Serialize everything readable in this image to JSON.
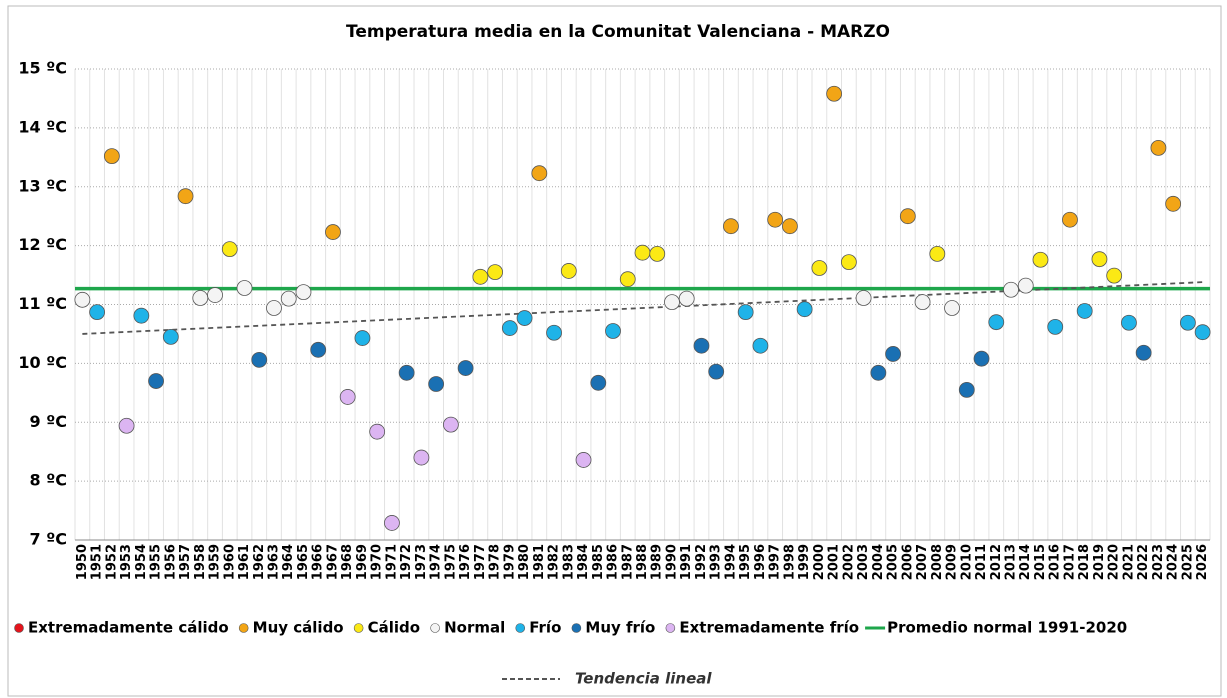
{
  "chart_data": {
    "type": "scatter",
    "title": "Temperatura media en la Comunitat Valenciana - MARZO",
    "categories": [
      "1950",
      "1951",
      "1952",
      "1953",
      "1954",
      "1955",
      "1956",
      "1957",
      "1958",
      "1959",
      "1960",
      "1961",
      "1962",
      "1963",
      "1964",
      "1965",
      "1966",
      "1967",
      "1968",
      "1969",
      "1970",
      "1971",
      "1972",
      "1973",
      "1974",
      "1975",
      "1976",
      "1977",
      "1978",
      "1979",
      "1980",
      "1981",
      "1982",
      "1983",
      "1984",
      "1985",
      "1986",
      "1987",
      "1988",
      "1989",
      "1990",
      "1991",
      "1992",
      "1993",
      "1994",
      "1995",
      "1996",
      "1997",
      "1998",
      "1999",
      "2000",
      "2001",
      "2002",
      "2003",
      "2004",
      "2005",
      "2006",
      "2007",
      "2008",
      "2009",
      "2010",
      "2011",
      "2012",
      "2013",
      "2014",
      "2015",
      "2016",
      "2017",
      "2018",
      "2019",
      "2020",
      "2021",
      "2022",
      "2023",
      "2024",
      "2025",
      "2026"
    ],
    "ylim": [
      7,
      15
    ],
    "yticks": [
      {
        "value": 7,
        "label": "7 ºC"
      },
      {
        "value": 8,
        "label": "8 ºC"
      },
      {
        "value": 9,
        "label": "9 ºC"
      },
      {
        "value": 10,
        "label": "10 ºC"
      },
      {
        "value": 11,
        "label": "11 ºC"
      },
      {
        "value": 12,
        "label": "12 ºC"
      },
      {
        "value": 13,
        "label": "13 ºC"
      },
      {
        "value": 14,
        "label": "14 ºC"
      },
      {
        "value": 15,
        "label": "15 ºC"
      }
    ],
    "grid": true,
    "legend": "bottom",
    "series": [
      {
        "name": "Extremadamente cálido",
        "color": "#e3141c",
        "values": [
          null,
          null,
          null,
          null,
          null,
          null,
          null,
          null,
          null,
          null,
          null,
          null,
          null,
          null,
          null,
          null,
          null,
          null,
          null,
          null,
          null,
          null,
          null,
          null,
          null,
          null,
          null,
          null,
          null,
          null,
          null,
          null,
          null,
          null,
          null,
          null,
          null,
          null,
          null,
          null,
          null,
          null,
          null,
          null,
          null,
          null,
          null,
          null,
          null,
          null,
          null,
          null,
          null,
          null,
          null,
          null,
          null,
          null,
          null,
          null,
          null,
          null,
          null,
          null,
          null,
          null,
          null,
          null,
          null,
          null,
          null,
          null,
          null,
          null,
          null,
          null,
          null
        ]
      },
      {
        "name": "Muy cálido",
        "color": "#f2a516",
        "values": [
          null,
          null,
          13.52,
          null,
          null,
          null,
          null,
          12.84,
          null,
          null,
          null,
          null,
          null,
          null,
          null,
          null,
          null,
          12.23,
          null,
          null,
          null,
          null,
          null,
          null,
          null,
          null,
          null,
          null,
          null,
          null,
          null,
          13.23,
          null,
          null,
          null,
          null,
          null,
          null,
          null,
          null,
          null,
          null,
          null,
          null,
          12.33,
          null,
          null,
          12.44,
          12.33,
          null,
          null,
          14.58,
          null,
          null,
          null,
          null,
          12.5,
          null,
          null,
          null,
          null,
          null,
          null,
          null,
          null,
          null,
          null,
          12.44,
          null,
          null,
          null,
          null,
          null,
          13.66,
          12.71,
          null,
          null
        ]
      },
      {
        "name": "Cálido",
        "color": "#fbe915",
        "values": [
          null,
          null,
          null,
          null,
          null,
          null,
          null,
          null,
          null,
          null,
          11.94,
          null,
          null,
          null,
          null,
          null,
          null,
          null,
          null,
          null,
          null,
          null,
          null,
          null,
          null,
          null,
          null,
          11.47,
          11.55,
          null,
          null,
          null,
          null,
          11.57,
          null,
          null,
          null,
          11.43,
          11.88,
          11.86,
          null,
          null,
          null,
          null,
          null,
          null,
          null,
          null,
          null,
          null,
          11.62,
          null,
          11.72,
          null,
          null,
          null,
          null,
          null,
          11.86,
          null,
          null,
          null,
          null,
          null,
          null,
          11.76,
          null,
          null,
          null,
          11.77,
          11.49,
          null,
          null,
          null,
          null,
          null,
          null
        ]
      },
      {
        "name": "Normal",
        "color": "#f4f4f4",
        "values": [
          11.08,
          null,
          null,
          null,
          null,
          null,
          null,
          null,
          11.11,
          11.16,
          null,
          11.28,
          null,
          10.94,
          11.1,
          11.21,
          null,
          null,
          null,
          null,
          null,
          null,
          null,
          null,
          null,
          null,
          null,
          null,
          null,
          null,
          null,
          null,
          null,
          null,
          null,
          null,
          null,
          null,
          null,
          null,
          11.04,
          11.1,
          null,
          null,
          null,
          null,
          null,
          null,
          null,
          null,
          null,
          null,
          null,
          11.11,
          null,
          null,
          null,
          11.04,
          null,
          10.94,
          null,
          null,
          null,
          11.25,
          11.32,
          null,
          null,
          null,
          null,
          null,
          null,
          null,
          null,
          null,
          null,
          null,
          null
        ]
      },
      {
        "name": "Frío",
        "color": "#1fb3e8",
        "values": [
          null,
          10.87,
          null,
          null,
          10.81,
          null,
          10.45,
          null,
          null,
          null,
          null,
          null,
          null,
          null,
          null,
          null,
          null,
          null,
          null,
          10.43,
          null,
          null,
          null,
          null,
          null,
          null,
          null,
          null,
          null,
          10.6,
          10.77,
          null,
          10.52,
          null,
          null,
          null,
          10.55,
          null,
          null,
          null,
          null,
          null,
          null,
          null,
          null,
          10.87,
          10.3,
          null,
          null,
          10.92,
          null,
          null,
          null,
          null,
          null,
          null,
          null,
          null,
          null,
          null,
          null,
          null,
          10.7,
          null,
          null,
          null,
          10.62,
          null,
          10.89,
          null,
          null,
          10.69,
          null,
          null,
          null,
          10.69,
          10.53
        ]
      },
      {
        "name": "Muy frío",
        "color": "#1a70b3",
        "values": [
          null,
          null,
          null,
          null,
          null,
          9.7,
          null,
          null,
          null,
          null,
          null,
          null,
          10.06,
          null,
          null,
          null,
          10.23,
          null,
          null,
          null,
          null,
          null,
          9.84,
          null,
          9.65,
          null,
          9.92,
          null,
          null,
          null,
          null,
          null,
          null,
          null,
          null,
          9.67,
          null,
          null,
          null,
          null,
          null,
          null,
          10.3,
          9.86,
          null,
          null,
          null,
          null,
          null,
          null,
          null,
          null,
          null,
          null,
          9.84,
          10.16,
          null,
          null,
          null,
          null,
          9.55,
          10.08,
          null,
          null,
          null,
          null,
          null,
          null,
          null,
          null,
          null,
          null,
          10.18,
          null,
          null,
          null,
          null
        ]
      },
      {
        "name": "Extremadamente frío",
        "color": "#dcb5f2",
        "values": [
          null,
          null,
          null,
          8.94,
          null,
          null,
          null,
          null,
          null,
          null,
          null,
          null,
          null,
          null,
          null,
          null,
          null,
          null,
          9.43,
          null,
          8.84,
          7.29,
          null,
          8.4,
          null,
          8.96,
          null,
          null,
          null,
          null,
          null,
          null,
          null,
          null,
          8.36,
          null,
          null,
          null,
          null,
          null,
          null,
          null,
          null,
          null,
          null,
          null,
          null,
          null,
          null,
          null,
          null,
          null,
          null,
          null,
          null,
          null,
          null,
          null,
          null,
          null,
          null,
          null,
          null,
          null,
          null,
          null,
          null,
          null,
          null,
          null,
          null,
          null,
          null,
          null,
          null,
          null,
          null
        ]
      }
    ],
    "average": {
      "name": "Promedio normal 1991-2020",
      "color": "#1ea64b",
      "value": 11.27
    },
    "trend": {
      "name": "Tendencia lineal",
      "color": "#555555",
      "values": [
        10.5,
        11.38
      ]
    }
  }
}
